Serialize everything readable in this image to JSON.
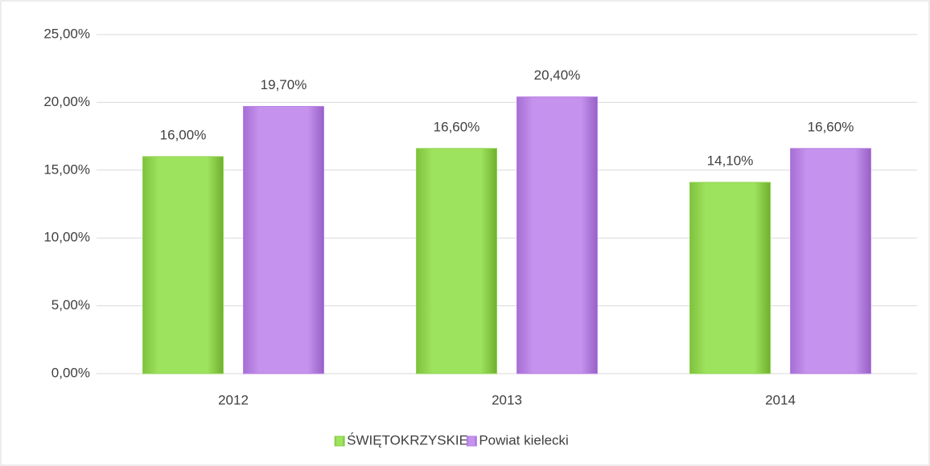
{
  "chart_data": {
    "type": "bar",
    "categories": [
      "2012",
      "2013",
      "2014"
    ],
    "series": [
      {
        "name": "ŚWIĘTOKRZYSKIE",
        "color": "#8fd14f",
        "values": [
          16,
          16.6,
          14.1
        ],
        "value_labels": [
          "16,00%",
          "16,60%",
          "14,10%"
        ]
      },
      {
        "name": "Powiat kielecki",
        "color": "#b77fe3",
        "values": [
          19.7,
          20.4,
          16.6
        ],
        "value_labels": [
          "19,70%",
          "20,40%",
          "16,60%"
        ]
      }
    ],
    "ylim": [
      0,
      25
    ],
    "yticks": [
      {
        "value": 0,
        "label": "0,00%"
      },
      {
        "value": 5,
        "label": "5,00%"
      },
      {
        "value": 10,
        "label": "10,00%"
      },
      {
        "value": 15,
        "label": "15,00%"
      },
      {
        "value": 20,
        "label": "20,00%"
      },
      {
        "value": 25,
        "label": "25,00%"
      }
    ],
    "grid": true,
    "legend": "bottom"
  }
}
